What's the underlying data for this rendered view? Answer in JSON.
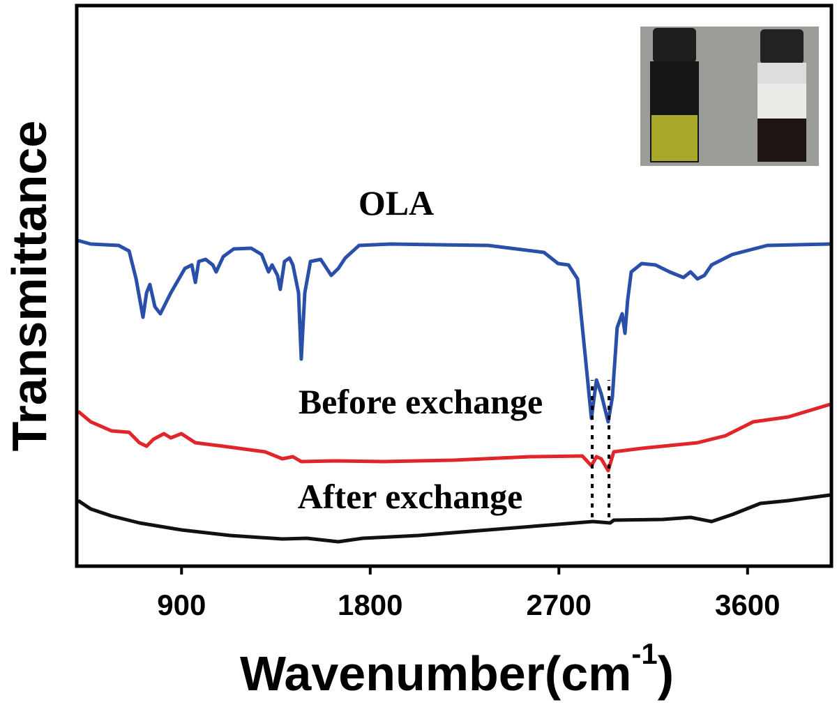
{
  "chart_data": {
    "type": "line",
    "xlabel": [
      "Wavenumber(cm",
      "-1",
      ")"
    ],
    "ylabel": "Transmittance",
    "annotations": [
      "OLA",
      "Before exchange",
      "After exchange"
    ],
    "xlim": [
      400,
      4000
    ],
    "xticks": [
      900,
      1800,
      2700,
      3600
    ],
    "ylim": [
      0,
      804
    ],
    "dashed_lines": {
      "x": [
        2859,
        2939
      ],
      "y": [
        70,
        267
      ]
    },
    "series": [
      {
        "name": "OLA",
        "color": "#2a4fa8",
        "x": [
          407,
          467,
          600,
          650,
          683,
          716,
          733,
          749,
          773,
          799,
          849,
          916,
          949,
          966,
          982,
          1015,
          1049,
          1065,
          1099,
          1149,
          1232,
          1282,
          1315,
          1332,
          1358,
          1371,
          1391,
          1415,
          1431,
          1458,
          1471,
          1488,
          1515,
          1564,
          1614,
          1648,
          1681,
          1747,
          1897,
          2363,
          2629,
          2696,
          2746,
          2789,
          2829,
          2855,
          2879,
          2902,
          2935,
          2955,
          2978,
          3002,
          3015,
          3028,
          3045,
          3095,
          3161,
          3228,
          3294,
          3328,
          3361,
          3394,
          3428,
          3527,
          3694,
          3993
        ],
        "values": [
          467,
          462,
          460,
          452,
          412,
          357,
          392,
          404,
          372,
          362,
          392,
          427,
          432,
          407,
          437,
          440,
          432,
          422,
          444,
          455,
          456,
          447,
          422,
          432,
          417,
          397,
          437,
          442,
          432,
          392,
          297,
          392,
          437,
          440,
          417,
          427,
          442,
          460,
          462,
          460,
          450,
          434,
          432,
          412,
          292,
          212,
          267,
          247,
          207,
          242,
          342,
          362,
          334,
          382,
          422,
          434,
          432,
          422,
          414,
          422,
          412,
          417,
          432,
          447,
          460,
          462
        ]
      },
      {
        "name": "Before exchange",
        "color": "#e0262a",
        "x": [
          407,
          467,
          566,
          650,
          699,
          733,
          766,
          816,
          849,
          899,
          966,
          1099,
          1298,
          1381,
          1431,
          1471,
          1631,
          1864,
          2197,
          2563,
          2812,
          2855,
          2879,
          2902,
          2935,
          2962,
          3095,
          3361,
          3494,
          3627,
          3794,
          3993
        ],
        "values": [
          222,
          207,
          194,
          192,
          177,
          172,
          182,
          190,
          184,
          190,
          177,
          172,
          164,
          154,
          157,
          150,
          151,
          150,
          152,
          157,
          158,
          144,
          157,
          154,
          137,
          164,
          169,
          177,
          187,
          207,
          214,
          232
        ]
      },
      {
        "name": "After exchange",
        "color": "#111111",
        "x": [
          407,
          467,
          566,
          699,
          899,
          1132,
          1381,
          1498,
          1648,
          1764,
          2030,
          2363,
          2696,
          2862,
          2945,
          2962,
          3195,
          3328,
          3428,
          3527,
          3661,
          3794,
          3993
        ],
        "values": [
          94,
          82,
          72,
          62,
          52,
          44,
          39,
          40,
          35,
          40,
          44,
          52,
          60,
          64,
          62,
          66,
          67,
          70,
          64,
          74,
          90,
          94,
          102
        ]
      }
    ]
  }
}
